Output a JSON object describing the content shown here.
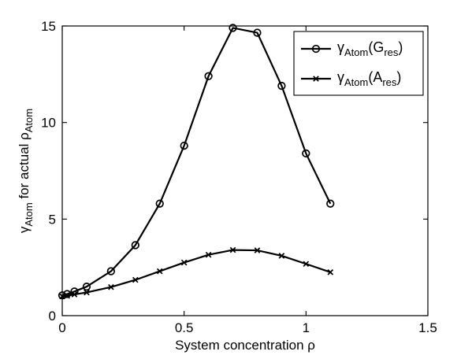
{
  "chart_data": {
    "type": "line",
    "xlabel": "System concentration ρ",
    "ylabel": {
      "prefix": "γ",
      "prefix_sub": "Atom",
      "middle": " for actual ρ",
      "suffix_sub": "Atom"
    },
    "xlim": [
      0,
      1.5
    ],
    "ylim": [
      0,
      15
    ],
    "xticks": [
      0,
      0.5,
      1,
      1.5
    ],
    "yticks": [
      0,
      5,
      10,
      15
    ],
    "xtick_labels": [
      "0",
      "0.5",
      "1",
      "1.5"
    ],
    "ytick_labels": [
      "0",
      "5",
      "10",
      "15"
    ],
    "grid": false,
    "legend_placement": "top-right",
    "series": [
      {
        "name": "γAtom(Gres)",
        "legend": {
          "base": "γ",
          "sub1": "Atom",
          "mid": "(G",
          "sub2": "res",
          "end": ")"
        },
        "marker": "circle",
        "color": "#000000",
        "x": [
          0,
          0.02,
          0.05,
          0.1,
          0.2,
          0.3,
          0.4,
          0.5,
          0.6,
          0.7,
          0.8,
          0.9,
          1.0,
          1.1
        ],
        "y": [
          1.05,
          1.12,
          1.25,
          1.5,
          2.3,
          3.65,
          5.8,
          8.8,
          12.4,
          14.9,
          14.65,
          11.9,
          8.4,
          5.8
        ]
      },
      {
        "name": "γAtom(Ares)",
        "legend": {
          "base": "γ",
          "sub1": "Atom",
          "mid": "(A",
          "sub2": "res",
          "end": ")"
        },
        "marker": "x",
        "color": "#000000",
        "x": [
          0,
          0.02,
          0.05,
          0.1,
          0.2,
          0.3,
          0.4,
          0.5,
          0.6,
          0.7,
          0.8,
          0.9,
          1.0,
          1.1
        ],
        "y": [
          1.0,
          1.03,
          1.1,
          1.2,
          1.48,
          1.85,
          2.3,
          2.75,
          3.15,
          3.4,
          3.38,
          3.1,
          2.68,
          2.25
        ]
      }
    ]
  }
}
